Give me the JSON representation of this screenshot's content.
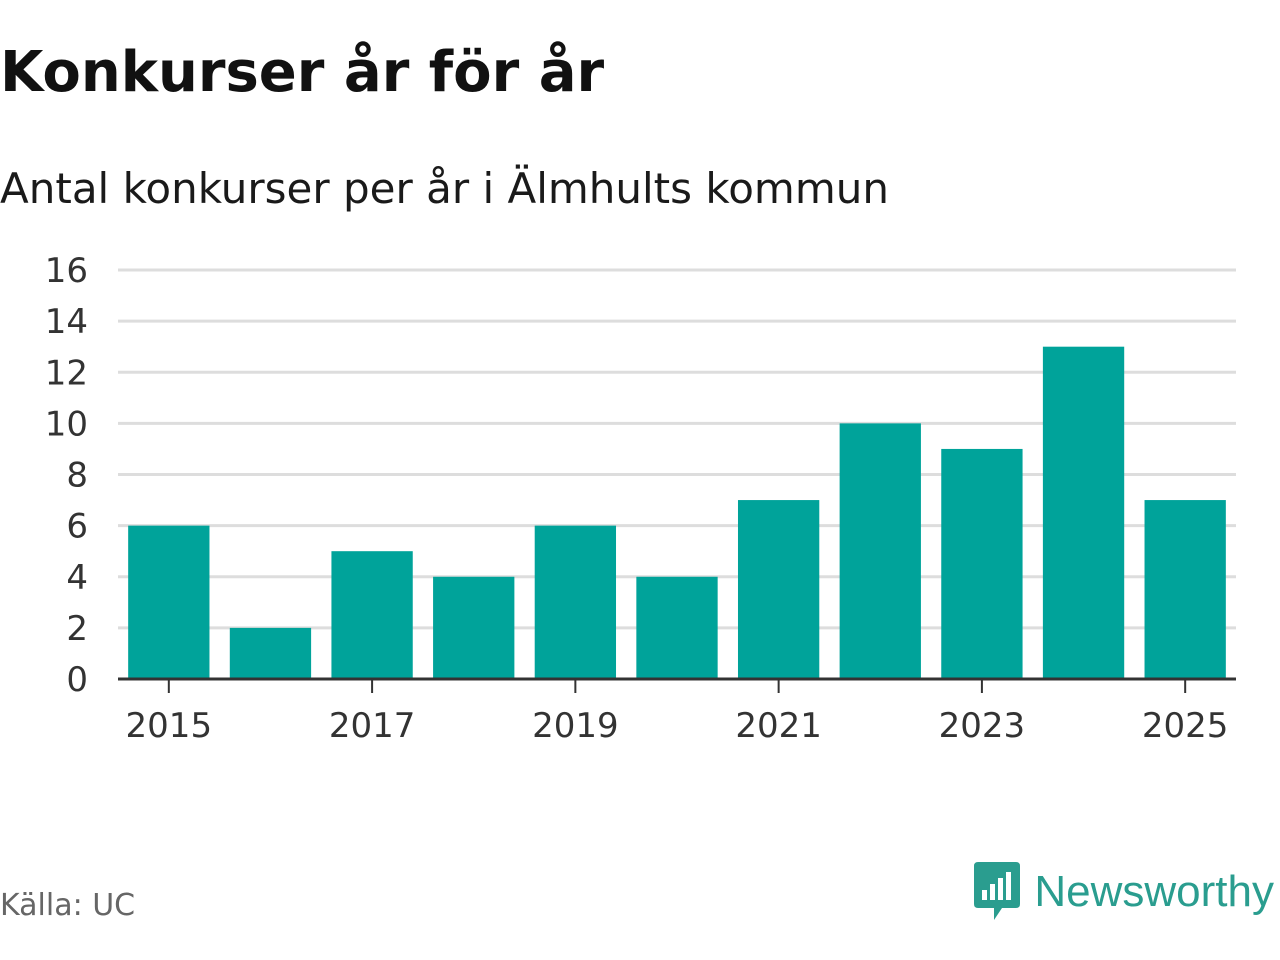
{
  "header": {
    "title": "Konkurser år för år",
    "subtitle": "Antal konkurser per år i Älmhults kommun"
  },
  "footer": {
    "source": "Källa: UC",
    "brand": "Newsworthy",
    "brand_icon": "newsworthy-logo-icon"
  },
  "colors": {
    "bar": "#00a39a",
    "grid": "#dddddd",
    "axis": "#333333",
    "brand": "#2a9d8f"
  },
  "chart_data": {
    "type": "bar",
    "categories": [
      "2015",
      "2016",
      "2017",
      "2018",
      "2019",
      "2020",
      "2021",
      "2022",
      "2023",
      "2024",
      "2025"
    ],
    "values": [
      6,
      2,
      5,
      4,
      6,
      4,
      7,
      10,
      9,
      13,
      7
    ],
    "x_tick_labels": [
      "2015",
      "2017",
      "2019",
      "2021",
      "2023",
      "2025"
    ],
    "y_ticks": [
      0,
      2,
      4,
      6,
      8,
      10,
      12,
      14,
      16
    ],
    "ylim": [
      0,
      16
    ],
    "title": "Konkurser år för år",
    "subtitle": "Antal konkurser per år i Älmhults kommun",
    "xlabel": "",
    "ylabel": "",
    "grid": true,
    "legend": "none"
  }
}
